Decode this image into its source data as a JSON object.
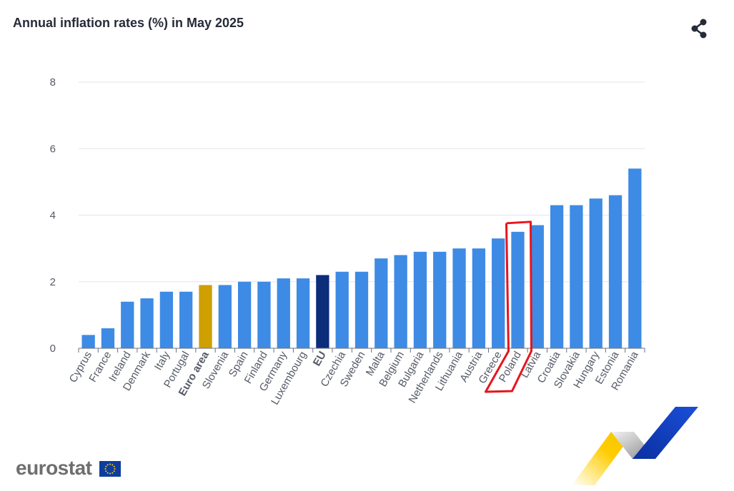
{
  "header": {
    "title": "Annual inflation rates (%) in May 2025",
    "share_icon": "share-icon"
  },
  "branding": {
    "logo_text": "eurostat",
    "flag_icon": "eu-flag-icon"
  },
  "colors": {
    "bar": "#3d8be5",
    "euro_area": "#cfa000",
    "eu": "#0b2d7a",
    "grid": "#e3e6ee",
    "highlight": "#e8141c"
  },
  "chart_data": {
    "type": "bar",
    "title": "Annual inflation rates (%) in May 2025",
    "xlabel": "",
    "ylabel": "",
    "ylim": [
      0,
      8
    ],
    "yticks": [
      0,
      2,
      4,
      6,
      8
    ],
    "grid": true,
    "categories": [
      "Cyprus",
      "France",
      "Ireland",
      "Denmark",
      "Italy",
      "Portugal",
      "Euro area",
      "Slovenia",
      "Spain",
      "Finland",
      "Germany",
      "Luxembourg",
      "EU",
      "Czechia",
      "Sweden",
      "Malta",
      "Belgium",
      "Bulgaria",
      "Netherlands",
      "Lithuania",
      "Austria",
      "Greece",
      "Poland",
      "Latvia",
      "Croatia",
      "Slovakia",
      "Hungary",
      "Estonia",
      "Romania"
    ],
    "values": [
      0.4,
      0.6,
      1.4,
      1.5,
      1.7,
      1.7,
      1.9,
      1.9,
      2.0,
      2.0,
      2.1,
      2.1,
      2.2,
      2.3,
      2.3,
      2.7,
      2.8,
      2.9,
      2.9,
      3.0,
      3.0,
      3.3,
      3.5,
      3.7,
      4.3,
      4.3,
      4.5,
      4.6,
      5.4
    ],
    "special_categories": {
      "Euro area": "euro_area",
      "EU": "eu"
    },
    "annotation": {
      "category": "Poland",
      "shape": "hand-drawn red outline"
    }
  }
}
